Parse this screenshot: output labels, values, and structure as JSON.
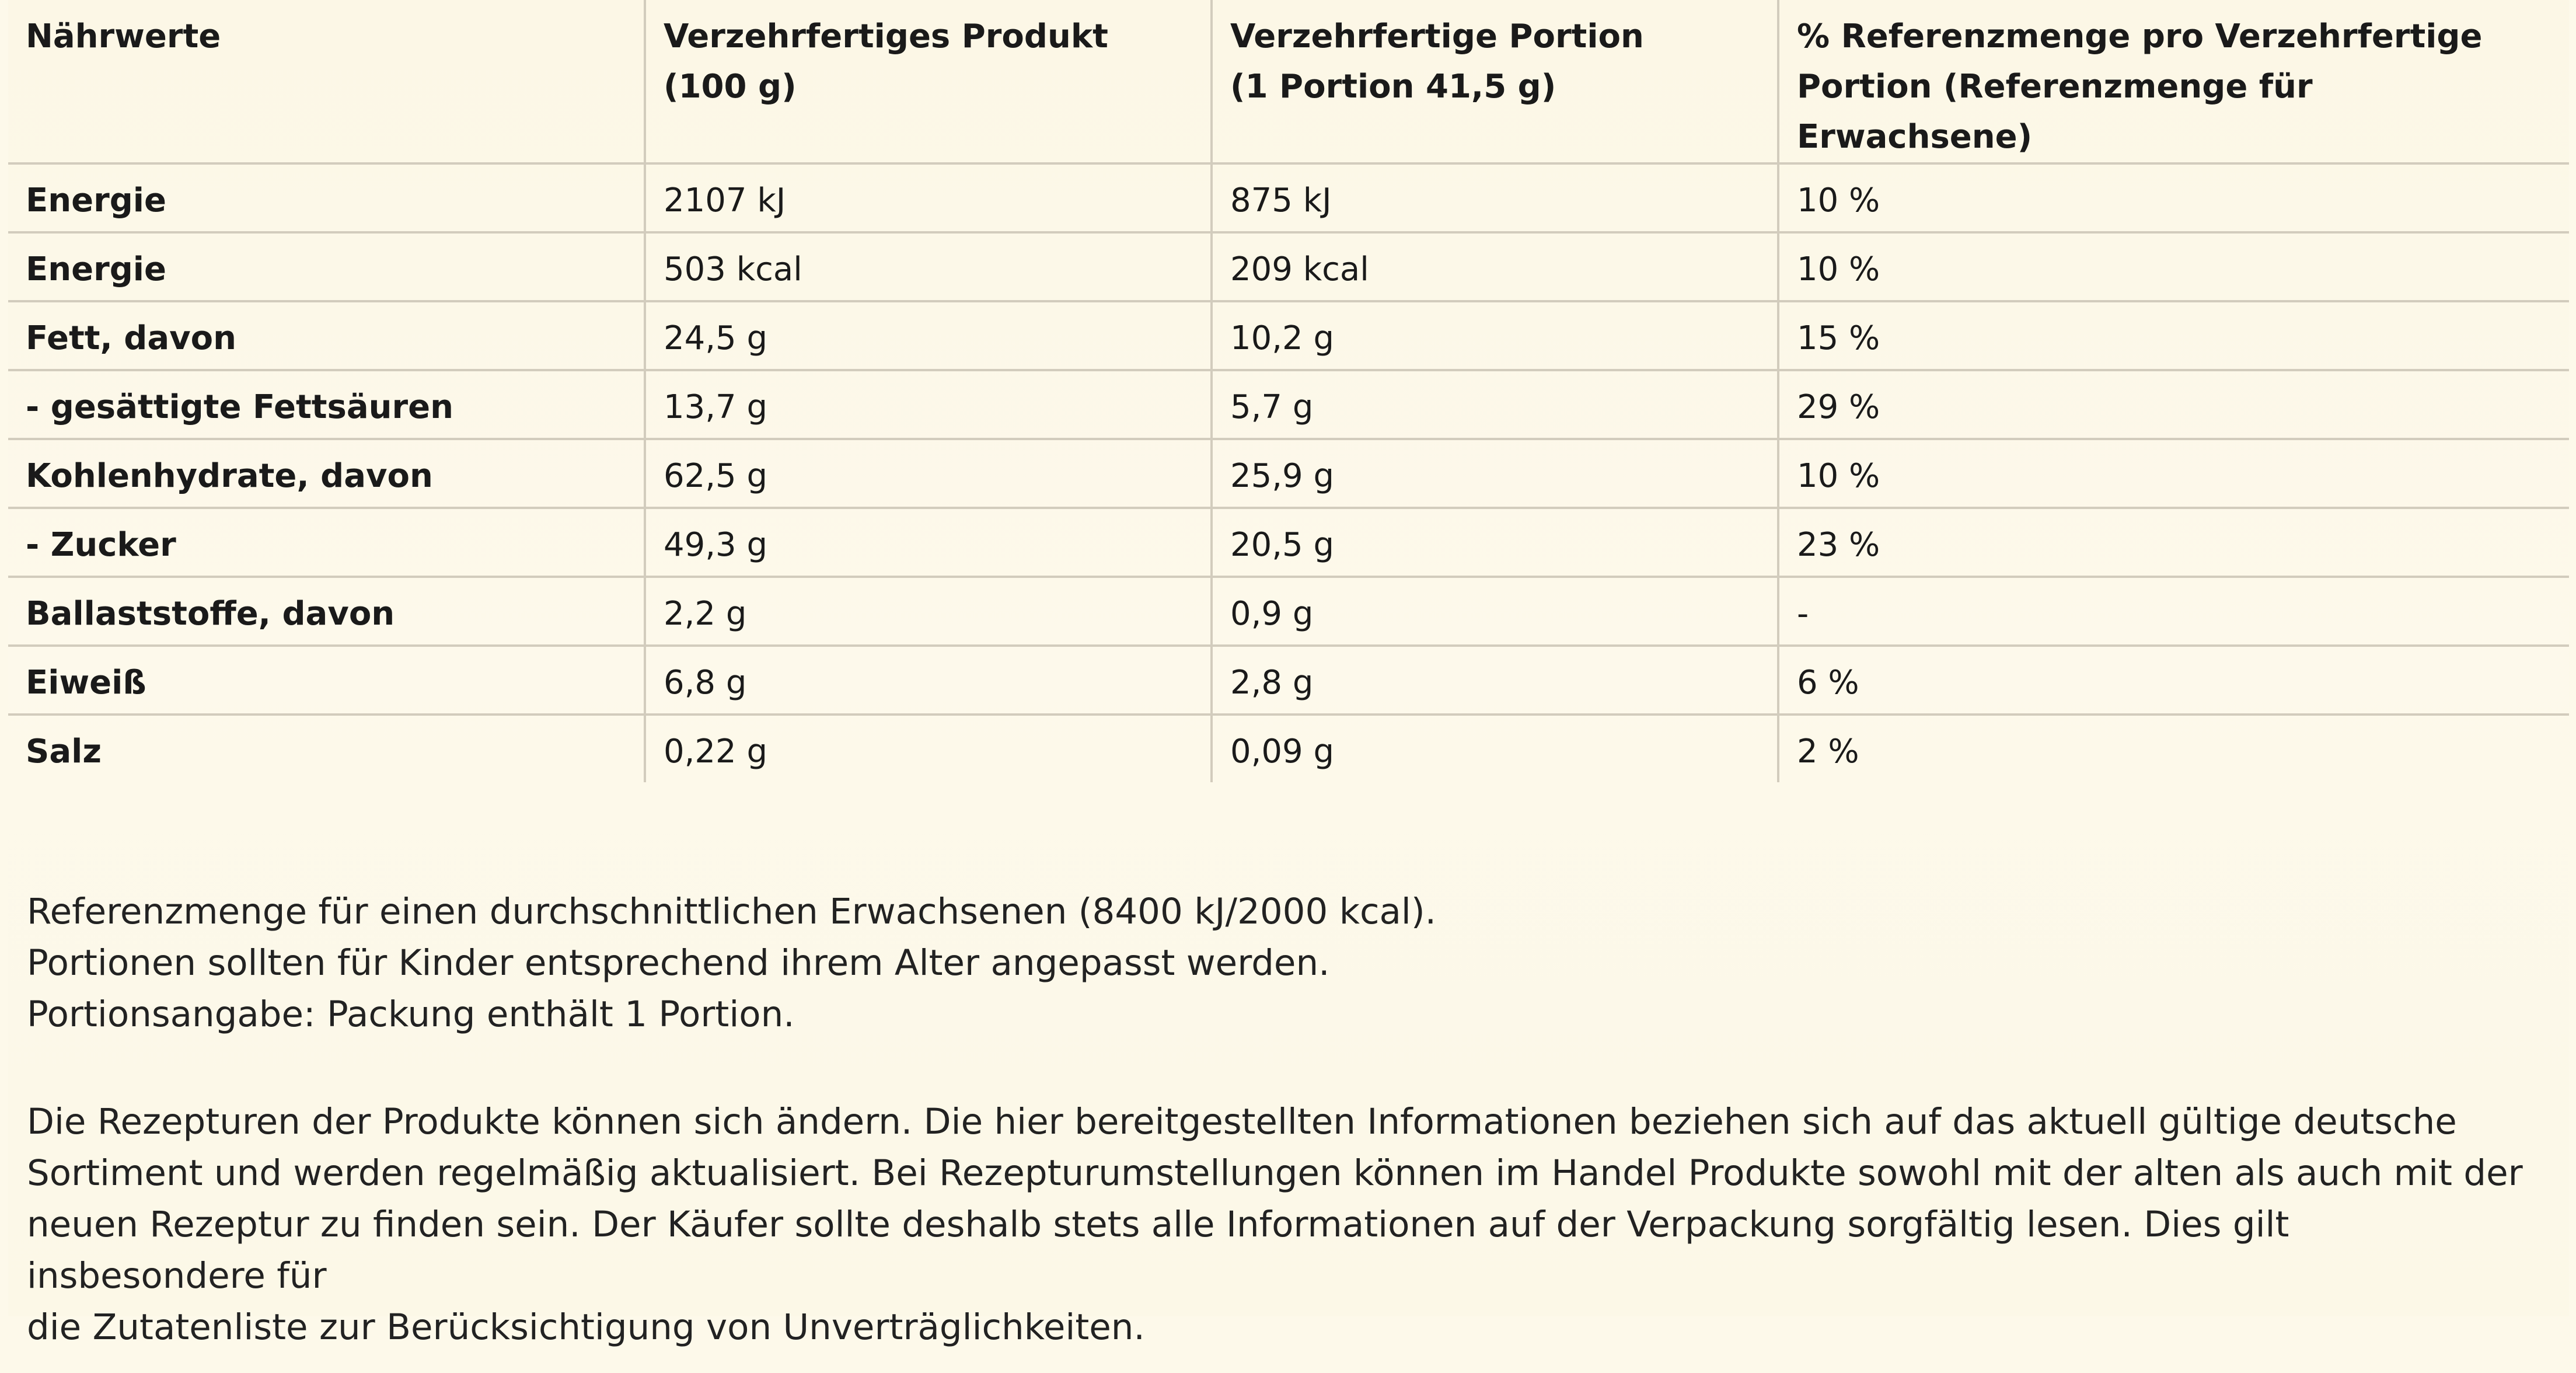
{
  "table": {
    "headers": [
      [
        "Nährwerte"
      ],
      [
        "Verzehrfertiges Produkt",
        "(100 g)"
      ],
      [
        "Verzehrfertige Portion",
        "(1 Portion 41,5 g)"
      ],
      [
        "% Referenzmenge pro Verzehrfertige",
        "Portion (Referenzmenge für Erwachsene)"
      ]
    ],
    "rows": [
      {
        "label": "Energie",
        "per100": "2107 kJ",
        "portion": "875 kJ",
        "ref": "10 %"
      },
      {
        "label": "Energie",
        "per100": "503 kcal",
        "portion": "209 kcal",
        "ref": "10 %"
      },
      {
        "label": "Fett, davon",
        "per100": "24,5 g",
        "portion": "10,2 g",
        "ref": "15 %"
      },
      {
        "label": "- gesättigte Fettsäuren",
        "per100": "13,7 g",
        "portion": "5,7 g",
        "ref": "29 %"
      },
      {
        "label": "Kohlenhydrate, davon",
        "per100": "62,5 g",
        "portion": "25,9 g",
        "ref": "10 %"
      },
      {
        "label": "- Zucker",
        "per100": "49,3 g",
        "portion": "20,5 g",
        "ref": "23 %"
      },
      {
        "label": "Ballaststoffe, davon",
        "per100": "2,2 g",
        "portion": "0,9 g",
        "ref": "-"
      },
      {
        "label": "Eiweiß",
        "per100": "6,8 g",
        "portion": "2,8 g",
        "ref": "6 %"
      },
      {
        "label": "Salz",
        "per100": "0,22 g",
        "portion": "0,09 g",
        "ref": "2 %"
      }
    ]
  },
  "notes": [
    "Referenzmenge für einen durchschnittlichen Erwachsenen (8400 kJ/2000 kcal).",
    "Portionen sollten für Kinder entsprechend ihrem Alter angepasst werden.",
    "Portionsangabe: Packung enthält 1 Portion."
  ],
  "disclaimer_lines": [
    "Die Rezepturen der Produkte können sich ändern. Die hier bereitgestellten Informationen beziehen sich auf das aktuell gültige deutsche",
    "Sortiment und werden regelmäßig aktualisiert. Bei Rezepturumstellungen können im Handel Produkte sowohl mit der alten als auch mit der",
    "neuen Rezeptur zu finden sein. Der Käufer sollte deshalb stets alle Informationen auf der Verpackung sorgfältig lesen. Dies gilt insbesondere für",
    "die Zutatenliste zur Berücksichtigung von Unverträglichkeiten."
  ]
}
